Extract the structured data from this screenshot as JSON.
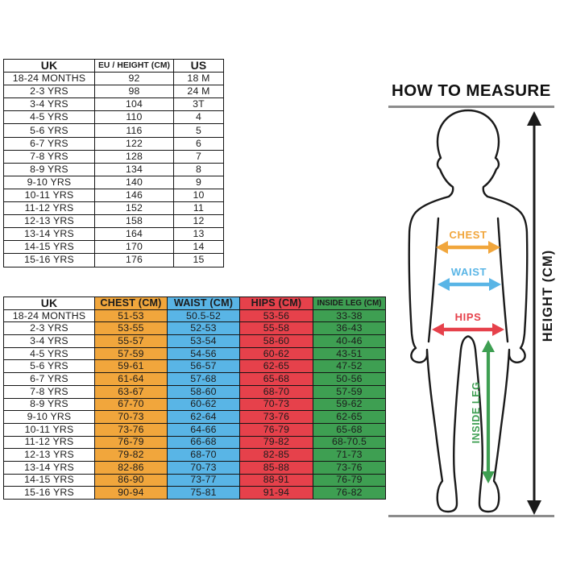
{
  "size_table": {
    "headers": [
      "UK",
      "EU / HEIGHT (CM)",
      "US"
    ],
    "rows": [
      [
        "18-24 MONTHS",
        "92",
        "18 M"
      ],
      [
        "2-3 YRS",
        "98",
        "24 M"
      ],
      [
        "3-4 YRS",
        "104",
        "3T"
      ],
      [
        "4-5 YRS",
        "110",
        "4"
      ],
      [
        "5-6 YRS",
        "116",
        "5"
      ],
      [
        "6-7 YRS",
        "122",
        "6"
      ],
      [
        "7-8 YRS",
        "128",
        "7"
      ],
      [
        "8-9 YRS",
        "134",
        "8"
      ],
      [
        "9-10 YRS",
        "140",
        "9"
      ],
      [
        "10-11 YRS",
        "146",
        "10"
      ],
      [
        "11-12 YRS",
        "152",
        "11"
      ],
      [
        "12-13 YRS",
        "158",
        "12"
      ],
      [
        "13-14 YRS",
        "164",
        "13"
      ],
      [
        "14-15 YRS",
        "170",
        "14"
      ],
      [
        "15-16 YRS",
        "176",
        "15"
      ]
    ]
  },
  "measurement_table": {
    "headers": [
      "UK",
      "CHEST (CM)",
      "WAIST (CM)",
      "HIPS (CM)",
      "INSIDE LEG (CM)"
    ],
    "rows": [
      [
        "18-24 MONTHS",
        "51-53",
        "50.5-52",
        "53-56",
        "33-38"
      ],
      [
        "2-3 YRS",
        "53-55",
        "52-53",
        "55-58",
        "36-43"
      ],
      [
        "3-4 YRS",
        "55-57",
        "53-54",
        "58-60",
        "40-46"
      ],
      [
        "4-5 YRS",
        "57-59",
        "54-56",
        "60-62",
        "43-51"
      ],
      [
        "5-6 YRS",
        "59-61",
        "56-57",
        "62-65",
        "47-52"
      ],
      [
        "6-7 YRS",
        "61-64",
        "57-68",
        "65-68",
        "50-56"
      ],
      [
        "7-8 YRS",
        "63-67",
        "58-60",
        "68-70",
        "57-59"
      ],
      [
        "8-9 YRS",
        "67-70",
        "60-62",
        "70-73",
        "59-62"
      ],
      [
        "9-10 YRS",
        "70-73",
        "62-64",
        "73-76",
        "62-65"
      ],
      [
        "10-11 YRS",
        "73-76",
        "64-66",
        "76-79",
        "65-68"
      ],
      [
        "11-12 YRS",
        "76-79",
        "66-68",
        "79-82",
        "68-70.5"
      ],
      [
        "12-13 YRS",
        "79-82",
        "68-70",
        "82-85",
        "71-73"
      ],
      [
        "13-14 YRS",
        "82-86",
        "70-73",
        "85-88",
        "73-76"
      ],
      [
        "14-15 YRS",
        "86-90",
        "73-77",
        "88-91",
        "76-79"
      ],
      [
        "15-16 YRS",
        "90-94",
        "75-81",
        "91-94",
        "76-82"
      ]
    ]
  },
  "how_to_measure": {
    "title": "HOW TO MEASURE",
    "labels": {
      "chest": "CHEST",
      "waist": "WAIST",
      "hips": "HIPS",
      "inside_leg": "INSIDE LEG",
      "height": "HEIGHT (CM)"
    }
  },
  "colors": {
    "chest": "#F1A63C",
    "waist": "#59B5E6",
    "hips": "#E6414B",
    "inside_leg": "#3E9F52",
    "line_gray": "#8C8C8C",
    "ink": "#1A1A1A"
  }
}
